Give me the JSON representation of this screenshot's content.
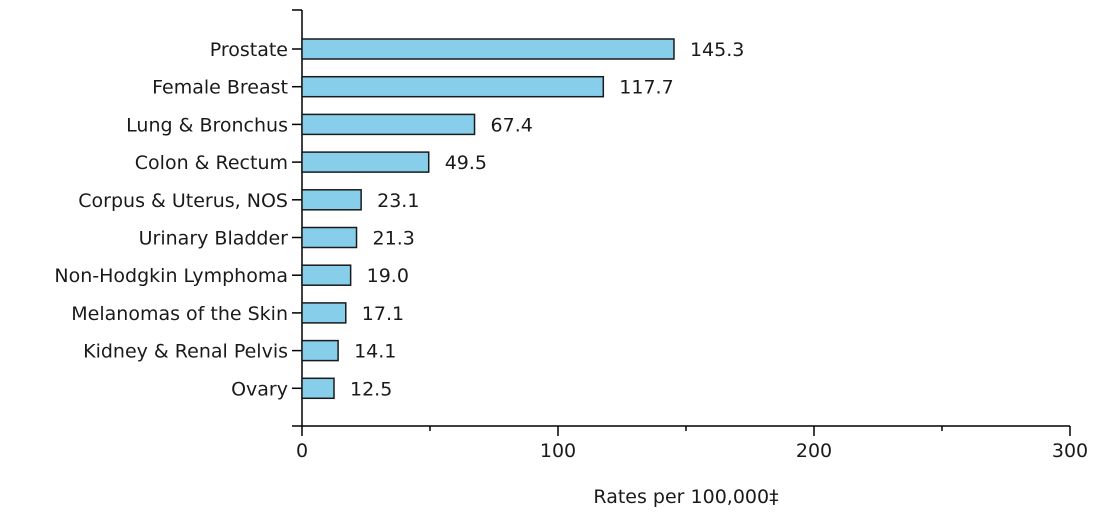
{
  "chart_data": {
    "type": "bar",
    "orientation": "horizontal",
    "categories": [
      "Prostate",
      "Female Breast",
      "Lung & Bronchus",
      "Colon & Rectum",
      "Corpus & Uterus, NOS",
      "Urinary Bladder",
      "Non-Hodgkin Lymphoma",
      "Melanomas of the Skin",
      "Kidney & Renal Pelvis",
      "Ovary"
    ],
    "values": [
      145.3,
      117.7,
      67.4,
      49.5,
      23.1,
      21.3,
      19.0,
      17.1,
      14.1,
      12.5
    ],
    "value_labels": [
      "145.3",
      "117.7",
      "67.4",
      "49.5",
      "23.1",
      "21.3",
      "19.0",
      "17.1",
      "14.1",
      "12.5"
    ],
    "xlabel": "Rates per 100,000‡",
    "ylabel": "",
    "xlim": [
      0,
      300
    ],
    "x_ticks": [
      0,
      100,
      200,
      300
    ],
    "x_minor_ticks": [
      50,
      150,
      250
    ],
    "grid": false,
    "legend": "none",
    "bar_color": "#87CEEB",
    "bar_border_color": "#1a1a1a"
  }
}
